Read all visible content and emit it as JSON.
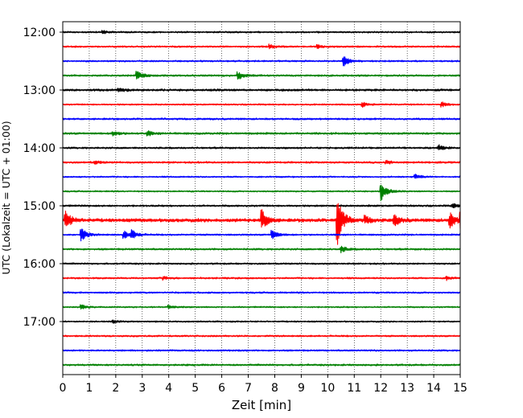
{
  "chart_data": {
    "type": "line",
    "xlabel": "Zeit  [min]",
    "ylabel": "UTC (Lokalzeit = UTC + 01:00)",
    "xlim": [
      0,
      15
    ],
    "x_ticks": [
      0,
      1,
      2,
      3,
      4,
      5,
      6,
      7,
      8,
      9,
      10,
      11,
      12,
      13,
      14,
      15
    ],
    "x_tick_labels": [
      "0",
      "1",
      "2",
      "3",
      "4",
      "5",
      "6",
      "7",
      "8",
      "9",
      "10",
      "11",
      "12",
      "13",
      "14",
      "15"
    ],
    "y_ticks": [
      "12:00",
      "13:00",
      "14:00",
      "15:00",
      "16:00",
      "17:00"
    ],
    "grid": "vertical dotted at each minute",
    "trace_interval_minutes": 15,
    "trace_colors": [
      "#000000",
      "#ff0000",
      "#0000ff",
      "#008000"
    ],
    "traces": [
      {
        "start": "12:00",
        "color": "#000000",
        "noise": 0.9,
        "events": [
          {
            "x": 1.5,
            "amp": 2
          }
        ]
      },
      {
        "start": "12:15",
        "color": "#ff0000",
        "noise": 0.9,
        "events": [
          {
            "x": 7.8,
            "amp": 2.5
          },
          {
            "x": 9.6,
            "amp": 2
          }
        ]
      },
      {
        "start": "12:30",
        "color": "#0000ff",
        "noise": 0.9,
        "events": [
          {
            "x": 10.6,
            "amp": 7
          }
        ]
      },
      {
        "start": "12:45",
        "color": "#008000",
        "noise": 1.0,
        "events": [
          {
            "x": 2.8,
            "amp": 6
          },
          {
            "x": 6.6,
            "amp": 5
          }
        ]
      },
      {
        "start": "13:00",
        "color": "#000000",
        "noise": 1.2,
        "events": [
          {
            "x": 2.1,
            "amp": 2
          }
        ]
      },
      {
        "start": "13:15",
        "color": "#ff0000",
        "noise": 0.8,
        "events": [
          {
            "x": 11.3,
            "amp": 3
          },
          {
            "x": 14.3,
            "amp": 3
          }
        ]
      },
      {
        "start": "13:30",
        "color": "#0000ff",
        "noise": 1.0,
        "events": []
      },
      {
        "start": "13:45",
        "color": "#008000",
        "noise": 1.1,
        "events": [
          {
            "x": 1.9,
            "amp": 3
          },
          {
            "x": 3.2,
            "amp": 3
          }
        ]
      },
      {
        "start": "14:00",
        "color": "#000000",
        "noise": 1.0,
        "events": [
          {
            "x": 14.2,
            "amp": 3
          }
        ]
      },
      {
        "start": "14:15",
        "color": "#ff0000",
        "noise": 1.0,
        "events": [
          {
            "x": 1.2,
            "amp": 2
          },
          {
            "x": 12.2,
            "amp": 2
          }
        ]
      },
      {
        "start": "14:30",
        "color": "#0000ff",
        "noise": 0.8,
        "events": [
          {
            "x": 13.3,
            "amp": 3
          }
        ]
      },
      {
        "start": "14:45",
        "color": "#008000",
        "noise": 0.8,
        "events": [
          {
            "x": 12.0,
            "amp": 13
          }
        ]
      },
      {
        "start": "15:00",
        "color": "#000000",
        "noise": 1.0,
        "events": [
          {
            "x": 14.7,
            "amp": 3
          }
        ]
      },
      {
        "start": "15:15",
        "color": "#ff0000",
        "noise": 1.8,
        "events": [
          {
            "x": 0.1,
            "amp": 11
          },
          {
            "x": 7.5,
            "amp": 14
          },
          {
            "x": 10.35,
            "amp": 34
          },
          {
            "x": 11.4,
            "amp": 5
          },
          {
            "x": 12.5,
            "amp": 7
          },
          {
            "x": 14.6,
            "amp": 10
          },
          {
            "x": 15.0,
            "amp": 9
          }
        ]
      },
      {
        "start": "15:30",
        "color": "#0000ff",
        "noise": 0.9,
        "events": [
          {
            "x": 0.7,
            "amp": 8
          },
          {
            "x": 2.3,
            "amp": 5
          },
          {
            "x": 2.6,
            "amp": 5
          },
          {
            "x": 7.9,
            "amp": 6
          }
        ]
      },
      {
        "start": "15:45",
        "color": "#008000",
        "noise": 1.0,
        "events": [
          {
            "x": 10.5,
            "amp": 4
          }
        ]
      },
      {
        "start": "16:00",
        "color": "#000000",
        "noise": 0.9,
        "events": []
      },
      {
        "start": "16:15",
        "color": "#ff0000",
        "noise": 0.9,
        "events": [
          {
            "x": 3.8,
            "amp": 2
          },
          {
            "x": 14.5,
            "amp": 2
          }
        ]
      },
      {
        "start": "16:30",
        "color": "#0000ff",
        "noise": 0.9,
        "events": []
      },
      {
        "start": "16:45",
        "color": "#008000",
        "noise": 0.8,
        "events": [
          {
            "x": 0.7,
            "amp": 3
          },
          {
            "x": 4.0,
            "amp": 2
          }
        ]
      },
      {
        "start": "17:00",
        "color": "#000000",
        "noise": 0.8,
        "events": [
          {
            "x": 1.9,
            "amp": 2
          }
        ]
      },
      {
        "start": "17:15",
        "color": "#ff0000",
        "noise": 0.9,
        "events": []
      },
      {
        "start": "17:30",
        "color": "#0000ff",
        "noise": 0.9,
        "events": []
      },
      {
        "start": "17:45",
        "color": "#008000",
        "noise": 1.0,
        "events": []
      }
    ]
  }
}
